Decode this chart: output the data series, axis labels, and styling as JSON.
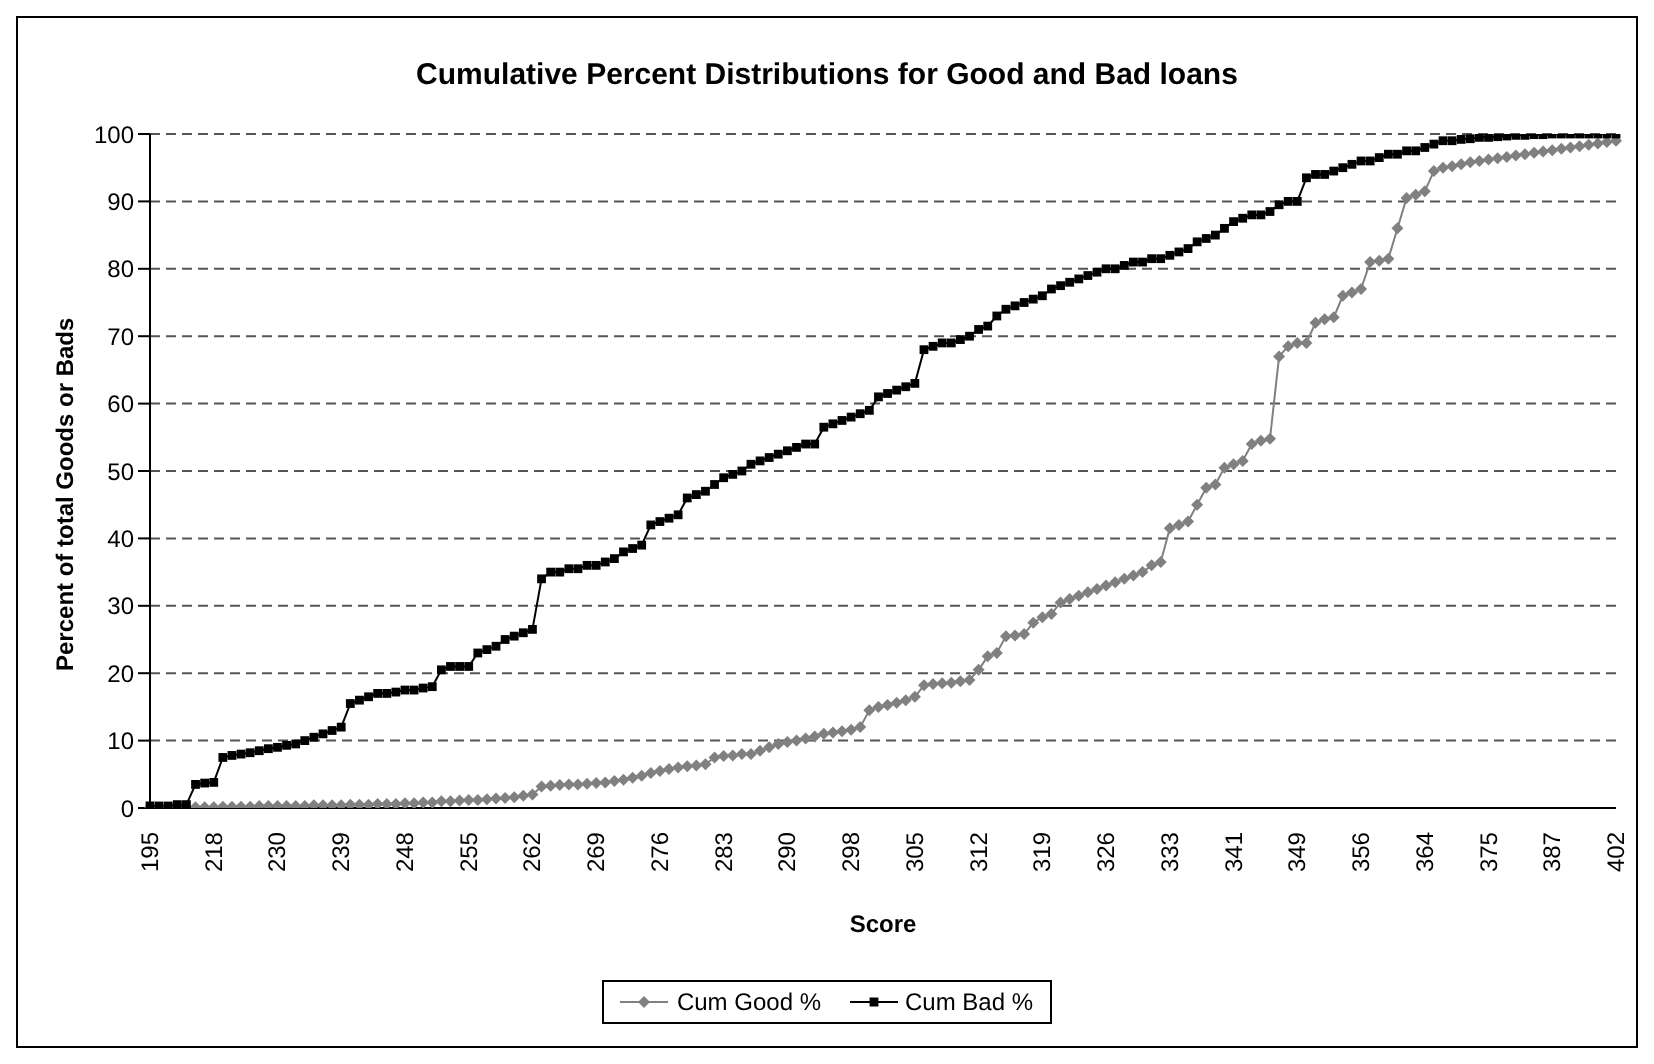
{
  "chart_data": {
    "type": "line",
    "title": "Cumulative Percent Distributions for Good and Bad loans",
    "xlabel": "Score",
    "ylabel": "Percent of total Goods or Bads",
    "categories": [
      "195",
      null,
      null,
      null,
      null,
      null,
      null,
      "218",
      null,
      null,
      null,
      null,
      null,
      null,
      "230",
      null,
      null,
      null,
      null,
      null,
      null,
      "239",
      null,
      null,
      null,
      null,
      null,
      null,
      "248",
      null,
      null,
      null,
      null,
      null,
      null,
      "255",
      null,
      null,
      null,
      null,
      null,
      null,
      "262",
      null,
      null,
      null,
      null,
      null,
      null,
      "269",
      null,
      null,
      null,
      null,
      null,
      null,
      "276",
      null,
      null,
      null,
      null,
      null,
      null,
      "283",
      null,
      null,
      null,
      null,
      null,
      null,
      "290",
      null,
      null,
      null,
      null,
      null,
      null,
      "298",
      null,
      null,
      null,
      null,
      null,
      null,
      "305",
      null,
      null,
      null,
      null,
      null,
      null,
      "312",
      null,
      null,
      null,
      null,
      null,
      null,
      "319",
      null,
      null,
      null,
      null,
      null,
      null,
      "326",
      null,
      null,
      null,
      null,
      null,
      null,
      "333",
      null,
      null,
      null,
      null,
      null,
      null,
      "341",
      null,
      null,
      null,
      null,
      null,
      null,
      "349",
      null,
      null,
      null,
      null,
      null,
      null,
      "356",
      null,
      null,
      null,
      null,
      null,
      null,
      "364",
      null,
      null,
      null,
      null,
      null,
      null,
      "375",
      null,
      null,
      null,
      null,
      null,
      null,
      "387",
      null,
      null,
      null,
      null,
      null,
      null,
      "402"
    ],
    "series": [
      {
        "name": "Cum Good %",
        "color": "#808080",
        "marker": "diamond",
        "values": [
          0,
          0,
          0,
          0,
          0.1,
          0.1,
          0.1,
          0.1,
          0.2,
          0.2,
          0.2,
          0.2,
          0.3,
          0.3,
          0.3,
          0.3,
          0.3,
          0.3,
          0.4,
          0.4,
          0.4,
          0.4,
          0.5,
          0.5,
          0.5,
          0.6,
          0.6,
          0.6,
          0.7,
          0.7,
          0.8,
          0.8,
          1,
          1,
          1.1,
          1.2,
          1.2,
          1.3,
          1.4,
          1.5,
          1.6,
          1.8,
          2,
          3.2,
          3.3,
          3.4,
          3.5,
          3.5,
          3.6,
          3.7,
          3.8,
          4,
          4.2,
          4.5,
          4.8,
          5.2,
          5.5,
          5.8,
          6,
          6.2,
          6.3,
          6.5,
          7.5,
          7.7,
          7.8,
          8,
          8,
          8.5,
          9,
          9.5,
          9.8,
          10,
          10.3,
          10.6,
          11,
          11.2,
          11.4,
          11.6,
          12,
          14.5,
          15,
          15.3,
          15.6,
          16,
          16.5,
          18.2,
          18.4,
          18.5,
          18.6,
          18.8,
          19,
          20.5,
          22.5,
          23,
          25.5,
          25.6,
          25.8,
          27.5,
          28.3,
          28.8,
          30.5,
          31,
          31.5,
          32,
          32.5,
          33,
          33.5,
          34,
          34.5,
          35,
          36,
          36.5,
          41.5,
          42,
          42.5,
          45,
          47.5,
          48,
          50.5,
          51,
          51.5,
          54,
          54.5,
          54.8,
          67,
          68.5,
          69,
          69,
          72,
          72.5,
          72.8,
          76,
          76.5,
          77,
          81,
          81.2,
          81.5,
          86,
          90.5,
          91,
          91.5,
          94.5,
          95,
          95.2,
          95.5,
          95.8,
          96,
          96.2,
          96.4,
          96.6,
          96.8,
          97,
          97.2,
          97.4,
          97.6,
          97.8,
          98,
          98.2,
          98.4,
          98.6,
          98.8,
          99
        ]
      },
      {
        "name": "Cum Bad %",
        "color": "#000000",
        "marker": "square",
        "values": [
          0.3,
          0.3,
          0.3,
          0.5,
          0.5,
          3.5,
          3.7,
          3.8,
          7.5,
          7.8,
          8,
          8.2,
          8.5,
          8.8,
          9,
          9.3,
          9.5,
          10,
          10.5,
          11,
          11.5,
          12,
          15.5,
          16,
          16.5,
          17,
          17,
          17.2,
          17.5,
          17.5,
          17.8,
          18,
          20.5,
          21,
          21,
          21,
          23,
          23.5,
          24,
          25,
          25.5,
          26,
          26.5,
          34,
          35,
          35,
          35.5,
          35.5,
          36,
          36,
          36.5,
          37,
          38,
          38.5,
          39,
          42,
          42.5,
          43,
          43.5,
          46,
          46.5,
          47,
          48,
          49,
          49.5,
          50,
          51,
          51.5,
          52,
          52.5,
          53,
          53.5,
          54,
          54,
          56.5,
          57,
          57.5,
          58,
          58.5,
          59,
          61,
          61.5,
          62,
          62.5,
          63,
          68,
          68.5,
          69,
          69,
          69.5,
          70,
          71,
          71.5,
          73,
          74,
          74.5,
          75,
          75.5,
          76,
          77,
          77.5,
          78,
          78.5,
          79,
          79.5,
          80,
          80,
          80.5,
          81,
          81,
          81.5,
          81.5,
          82,
          82.5,
          83,
          84,
          84.5,
          85,
          86,
          87,
          87.5,
          88,
          88,
          88.5,
          89.5,
          90,
          90,
          93.5,
          94,
          94,
          94.5,
          95,
          95.5,
          96,
          96,
          96.5,
          97,
          97,
          97.5,
          97.5,
          98,
          98.5,
          99,
          99,
          99.2,
          99.3,
          99.5,
          99.5,
          99.6,
          99.7,
          99.8,
          99.8,
          99.9,
          99.9,
          100,
          100,
          100,
          100,
          100,
          100,
          100,
          100
        ]
      }
    ],
    "ylim": [
      0,
      100
    ],
    "yticks": [
      0,
      10,
      20,
      30,
      40,
      50,
      60,
      70,
      80,
      90,
      100
    ],
    "grid": "y",
    "legend": "bottom"
  }
}
